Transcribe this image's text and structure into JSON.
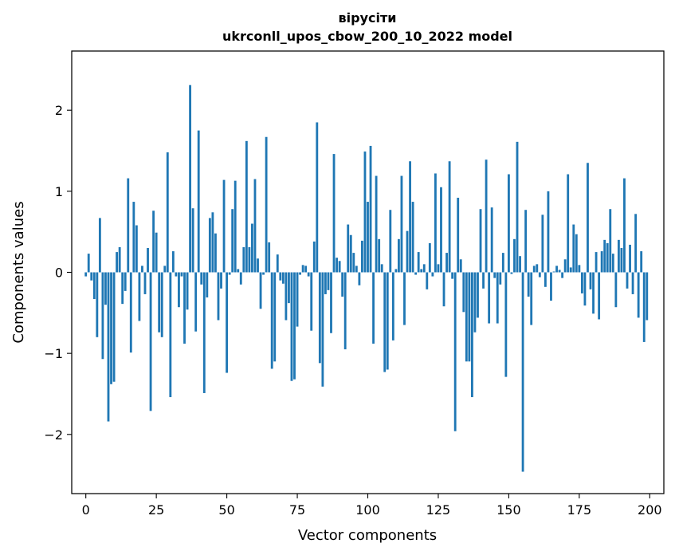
{
  "chart_data": {
    "type": "bar",
    "title_line1": "вірусіти",
    "title_line2": "ukrconll_upos_cbow_200_10_2022 model",
    "xlabel": "Vector components",
    "ylabel": "Components values",
    "xlim": [
      -5,
      205
    ],
    "ylim": [
      -2.73,
      2.73
    ],
    "xticks": [
      0,
      25,
      50,
      75,
      100,
      125,
      150,
      175,
      200
    ],
    "yticks": [
      -2,
      -1,
      0,
      1,
      2
    ],
    "ytick_labels": [
      "−2",
      "−1",
      "0",
      "1",
      "2"
    ],
    "bar_color": "#1f77b4",
    "grid": false,
    "values": [
      -0.05,
      0.23,
      -0.1,
      -0.33,
      -0.8,
      0.67,
      -1.07,
      -0.4,
      -1.84,
      -1.38,
      -1.35,
      0.25,
      0.31,
      -0.39,
      -0.23,
      1.16,
      -0.99,
      0.87,
      0.58,
      -0.6,
      0.08,
      -0.27,
      0.3,
      -1.71,
      0.76,
      0.49,
      -0.74,
      -0.8,
      0.08,
      1.48,
      -1.54,
      0.26,
      -0.05,
      -0.43,
      -0.05,
      -0.88,
      -0.46,
      2.31,
      0.79,
      -0.73,
      1.75,
      -0.15,
      -1.49,
      -0.31,
      0.67,
      0.74,
      0.48,
      -0.59,
      -0.2,
      1.14,
      -1.24,
      -0.03,
      0.78,
      1.13,
      0.04,
      -0.15,
      0.31,
      1.62,
      0.31,
      0.6,
      1.15,
      0.17,
      -0.45,
      -0.03,
      1.67,
      0.37,
      -1.19,
      -1.1,
      0.22,
      -0.1,
      -0.14,
      -0.59,
      -0.38,
      -1.34,
      -1.32,
      -0.67,
      -0.03,
      0.09,
      0.08,
      -0.05,
      -0.72,
      0.38,
      1.85,
      -1.12,
      -1.41,
      -0.27,
      -0.22,
      -0.75,
      1.46,
      0.18,
      0.14,
      -0.3,
      -0.95,
      0.59,
      0.46,
      0.24,
      0.08,
      -0.16,
      0.39,
      1.49,
      0.87,
      1.56,
      -0.88,
      1.19,
      0.41,
      0.1,
      -1.23,
      -1.2,
      0.77,
      -0.84,
      0.04,
      0.41,
      1.19,
      -0.65,
      0.51,
      1.37,
      0.87,
      -0.03,
      0.25,
      0.04,
      0.1,
      -0.21,
      0.36,
      -0.05,
      1.22,
      0.1,
      1.05,
      -0.42,
      0.24,
      1.37,
      -0.08,
      -1.96,
      0.92,
      0.16,
      -0.49,
      -1.1,
      -1.1,
      -1.54,
      -0.74,
      -0.56,
      0.78,
      -0.2,
      1.39,
      -0.63,
      0.8,
      -0.07,
      -0.63,
      -0.15,
      0.24,
      -1.29,
      1.21,
      -0.02,
      0.41,
      1.61,
      0.2,
      -2.46,
      0.77,
      -0.3,
      -0.65,
      0.08,
      0.1,
      -0.06,
      0.71,
      -0.18,
      1.0,
      -0.35,
      0.01,
      0.08,
      0.03,
      -0.07,
      0.16,
      1.21,
      0.06,
      0.59,
      0.47,
      0.09,
      -0.26,
      -0.41,
      1.35,
      -0.21,
      -0.51,
      0.25,
      -0.58,
      0.26,
      0.4,
      0.36,
      0.78,
      0.23,
      -0.43,
      0.4,
      0.3,
      1.16,
      -0.2,
      0.34,
      -0.27,
      0.72,
      -0.56,
      0.26,
      -0.86,
      -0.59
    ]
  }
}
